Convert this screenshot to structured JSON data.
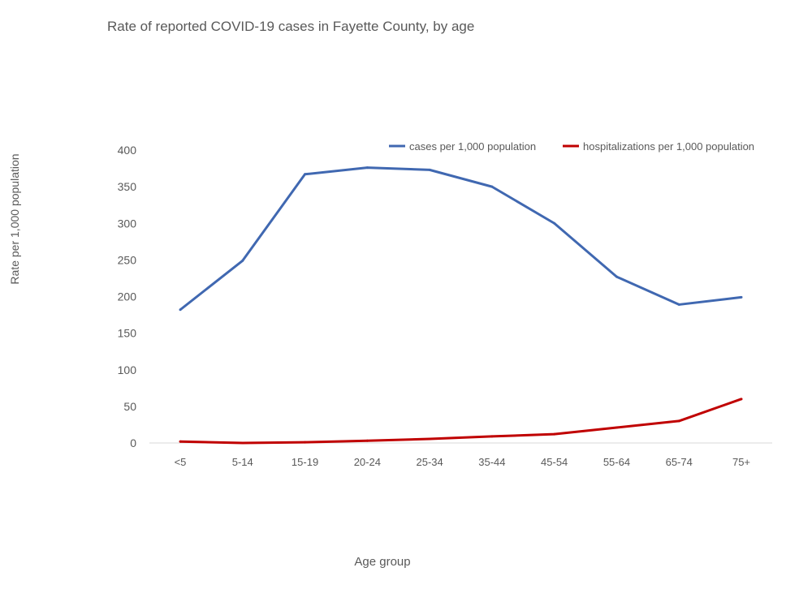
{
  "chart_data": {
    "type": "line",
    "title": "Rate of reported COVID-19 cases in Fayette County, by age",
    "xlabel": "Age group",
    "ylabel": "Rate per 1,000 population",
    "ylim": [
      0,
      400
    ],
    "yticks": [
      0,
      50,
      100,
      150,
      200,
      250,
      300,
      350,
      400
    ],
    "grid": false,
    "legend_position": "top-right",
    "categories": [
      "<5",
      "5-14",
      "15-19",
      "20-24",
      "25-34",
      "35-44",
      "45-54",
      "55-64",
      "65-74",
      "75+"
    ],
    "series": [
      {
        "name": "cases per 1,000 population",
        "color": "#4068B1",
        "values": [
          182,
          249,
          367,
          376,
          373,
          350,
          300,
          227,
          189,
          199
        ]
      },
      {
        "name": "hospitalizations per 1,000 population",
        "color": "#C00000",
        "values": [
          2,
          0,
          1,
          3,
          5.5,
          9,
          12,
          21,
          30,
          60
        ]
      }
    ]
  }
}
